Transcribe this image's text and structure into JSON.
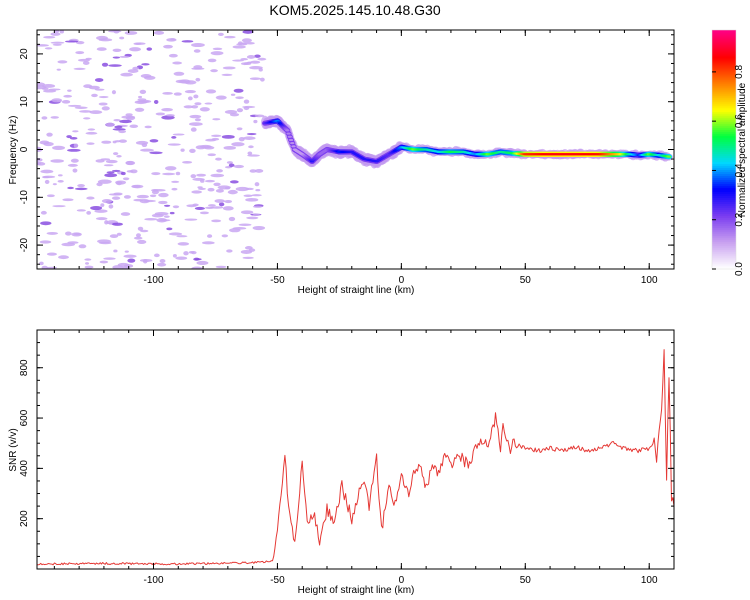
{
  "title": "KOM5.2025.145.10.48.G30",
  "colors": {
    "snr_line": "#e53935",
    "speckle": "#c9a7f2",
    "speckle_dark": "#8a4fe0",
    "colormap": [
      "#ffffff",
      "#c8a0f0",
      "#7a3cf0",
      "#0000ff",
      "#00d8ff",
      "#00ff40",
      "#ffff00",
      "#ff8000",
      "#ff0000",
      "#ff0080"
    ]
  },
  "spectrogram": {
    "type": "heatmap",
    "xlabel": "Height of straight line (km)",
    "ylabel": "Frequency (Hz)",
    "xlim": [
      -147,
      110
    ],
    "ylim": [
      -25,
      25
    ],
    "xticks": [
      -100,
      -50,
      0,
      50,
      100
    ],
    "yticks": [
      -20,
      -10,
      0,
      10,
      20
    ],
    "colorbar": {
      "label": "Normalized spectral amplitude",
      "lim": [
        0,
        0.97
      ],
      "ticks": [
        "0.0",
        "0.2",
        "0.4",
        "0.6",
        "0.8"
      ]
    },
    "noise_region": {
      "x": [
        -147,
        -56
      ],
      "amplitude": 0.05
    },
    "ridge": [
      {
        "x": -55,
        "f": 5.5,
        "a": 0.25
      },
      {
        "x": -50,
        "f": 6,
        "a": 0.4
      },
      {
        "x": -46,
        "f": 4,
        "a": 0.15
      },
      {
        "x": -43,
        "f": 0,
        "a": 0.12
      },
      {
        "x": -40,
        "f": -1,
        "a": 0.12
      },
      {
        "x": -36,
        "f": -2.5,
        "a": 0.3
      },
      {
        "x": -33,
        "f": -1,
        "a": 0.18
      },
      {
        "x": -30,
        "f": 0,
        "a": 0.18
      },
      {
        "x": -25,
        "f": -0.5,
        "a": 0.35
      },
      {
        "x": -20,
        "f": -0.5,
        "a": 0.3
      },
      {
        "x": -15,
        "f": -2,
        "a": 0.3
      },
      {
        "x": -10,
        "f": -2.5,
        "a": 0.3
      },
      {
        "x": -5,
        "f": -1,
        "a": 0.25
      },
      {
        "x": 0,
        "f": 0.5,
        "a": 0.4
      },
      {
        "x": 5,
        "f": 0,
        "a": 0.6
      },
      {
        "x": 10,
        "f": 0,
        "a": 0.5
      },
      {
        "x": 15,
        "f": -0.5,
        "a": 0.45
      },
      {
        "x": 20,
        "f": -0.5,
        "a": 0.55
      },
      {
        "x": 25,
        "f": -0.5,
        "a": 0.5
      },
      {
        "x": 30,
        "f": -1,
        "a": 0.4
      },
      {
        "x": 35,
        "f": -1,
        "a": 0.6
      },
      {
        "x": 40,
        "f": -0.5,
        "a": 0.5
      },
      {
        "x": 45,
        "f": -0.8,
        "a": 0.55
      },
      {
        "x": 50,
        "f": -1,
        "a": 0.85
      },
      {
        "x": 60,
        "f": -1,
        "a": 0.9
      },
      {
        "x": 70,
        "f": -1,
        "a": 0.9
      },
      {
        "x": 80,
        "f": -1,
        "a": 0.88
      },
      {
        "x": 88,
        "f": -1,
        "a": 0.7
      },
      {
        "x": 92,
        "f": -1,
        "a": 0.5
      },
      {
        "x": 96,
        "f": -1.2,
        "a": 0.35
      },
      {
        "x": 100,
        "f": -1,
        "a": 0.6
      },
      {
        "x": 104,
        "f": -1.2,
        "a": 0.45
      },
      {
        "x": 108,
        "f": -1.5,
        "a": 0.6
      }
    ]
  },
  "snr": {
    "type": "line",
    "xlabel": "Height of straight line (km)",
    "ylabel": "SNR (v/v)",
    "xlim": [
      -147,
      110
    ],
    "ylim": [
      0,
      950
    ],
    "xticks": [
      -100,
      -50,
      0,
      50,
      100
    ],
    "yticks": [
      200,
      400,
      600,
      800
    ],
    "x": [
      -147,
      -120,
      -90,
      -60,
      -52,
      -50,
      -47,
      -45,
      -43,
      -40,
      -38,
      -35,
      -33,
      -30,
      -27,
      -24,
      -20,
      -17,
      -15,
      -13,
      -10,
      -8,
      -5,
      -3,
      0,
      3,
      5,
      8,
      10,
      13,
      15,
      18,
      20,
      23,
      25,
      28,
      30,
      33,
      35,
      37,
      38,
      40,
      41,
      43,
      44,
      45,
      47,
      50,
      55,
      60,
      65,
      70,
      75,
      80,
      85,
      90,
      95,
      100,
      102,
      103,
      104,
      105,
      106,
      107,
      108,
      109,
      110
    ],
    "y": [
      20,
      22,
      20,
      25,
      30,
      150,
      440,
      200,
      100,
      430,
      170,
      220,
      100,
      240,
      180,
      330,
      200,
      300,
      350,
      250,
      440,
      150,
      350,
      250,
      380,
      290,
      380,
      400,
      320,
      420,
      380,
      450,
      400,
      470,
      430,
      420,
      500,
      510,
      480,
      560,
      600,
      480,
      580,
      500,
      470,
      530,
      490,
      480,
      470,
      480,
      470,
      485,
      470,
      480,
      500,
      480,
      470,
      480,
      500,
      430,
      560,
      630,
      860,
      350,
      780,
      280,
      250
    ]
  }
}
